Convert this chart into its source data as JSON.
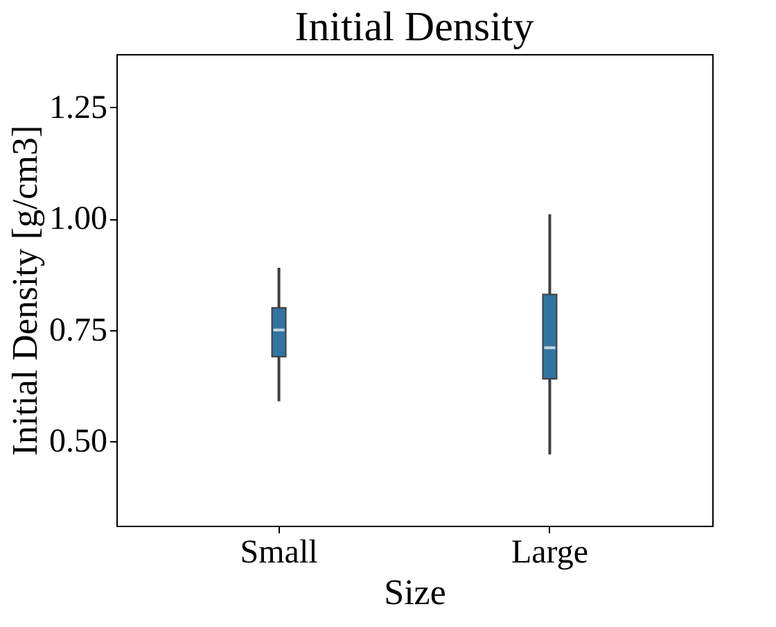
{
  "chart_data": {
    "type": "box",
    "title": "Initial Density",
    "xlabel": "Size",
    "ylabel": "Initial Density [g/cm3]",
    "categories": [
      "Small",
      "Large"
    ],
    "series": [
      {
        "color": "#3274a1",
        "boxes": [
          {
            "low": 0.59,
            "q1": 0.69,
            "median": 0.75,
            "q3": 0.8,
            "high": 0.89
          },
          {
            "low": 0.47,
            "q1": 0.64,
            "median": 0.71,
            "q3": 0.83,
            "high": 1.01
          }
        ]
      }
    ],
    "ylim": [
      0.31,
      1.37
    ],
    "yticks": [
      {
        "value": 0.5,
        "label": "0.50"
      },
      {
        "value": 0.75,
        "label": "0.75"
      },
      {
        "value": 1.0,
        "label": "1.00"
      },
      {
        "value": 1.25,
        "label": "1.25"
      }
    ],
    "grid": false
  }
}
